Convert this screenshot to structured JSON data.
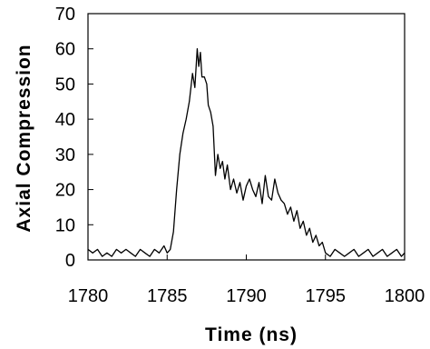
{
  "chart_data": {
    "type": "line",
    "title": "",
    "xlabel": "Time (ns)",
    "ylabel": "Axial Compression",
    "xlim": [
      1780,
      1800
    ],
    "ylim": [
      0,
      70
    ],
    "xticks": [
      1780,
      1785,
      1790,
      1795,
      1800
    ],
    "yticks": [
      0,
      10,
      20,
      30,
      40,
      50,
      60,
      70
    ],
    "grid": false,
    "legend": "none",
    "line_color": "#000000",
    "series": [
      {
        "x": [
          1780.0,
          1780.3,
          1780.6,
          1780.9,
          1781.2,
          1781.5,
          1781.8,
          1782.1,
          1782.4,
          1782.7,
          1783.0,
          1783.3,
          1783.6,
          1783.9,
          1784.2,
          1784.5,
          1784.8,
          1785.0,
          1785.2,
          1785.4,
          1785.6,
          1785.8,
          1786.0,
          1786.2,
          1786.4,
          1786.6,
          1786.75,
          1786.9,
          1787.0,
          1787.1,
          1787.2,
          1787.35,
          1787.5,
          1787.6,
          1787.75,
          1787.9,
          1788.05,
          1788.2,
          1788.35,
          1788.5,
          1788.65,
          1788.8,
          1789.0,
          1789.2,
          1789.4,
          1789.6,
          1789.8,
          1790.0,
          1790.2,
          1790.4,
          1790.6,
          1790.8,
          1791.0,
          1791.2,
          1791.4,
          1791.6,
          1791.8,
          1792.0,
          1792.2,
          1792.4,
          1792.6,
          1792.8,
          1793.0,
          1793.2,
          1793.4,
          1793.6,
          1793.8,
          1794.0,
          1794.2,
          1794.4,
          1794.6,
          1794.8,
          1795.0,
          1795.3,
          1795.6,
          1795.9,
          1796.2,
          1796.5,
          1796.8,
          1797.1,
          1797.4,
          1797.7,
          1798.0,
          1798.3,
          1798.6,
          1798.9,
          1799.2,
          1799.5,
          1799.8,
          1800.0
        ],
        "values": [
          3,
          2,
          3,
          1,
          2,
          1,
          3,
          2,
          3,
          2,
          1,
          3,
          2,
          1,
          3,
          2,
          4,
          2,
          3,
          8,
          20,
          30,
          36,
          40,
          45,
          53,
          49,
          60,
          55,
          59,
          52,
          52,
          50,
          44,
          42,
          38,
          24,
          30,
          26,
          28,
          23,
          27,
          20,
          23,
          19,
          22,
          17,
          21,
          23,
          20,
          18,
          22,
          16,
          24,
          18,
          17,
          23,
          19,
          17,
          16,
          13,
          15,
          11,
          14,
          9,
          11,
          7,
          9,
          5,
          7,
          4,
          5,
          2,
          1,
          3,
          2,
          1,
          2,
          3,
          1,
          2,
          3,
          1,
          2,
          3,
          1,
          2,
          3,
          1,
          2
        ]
      }
    ]
  }
}
